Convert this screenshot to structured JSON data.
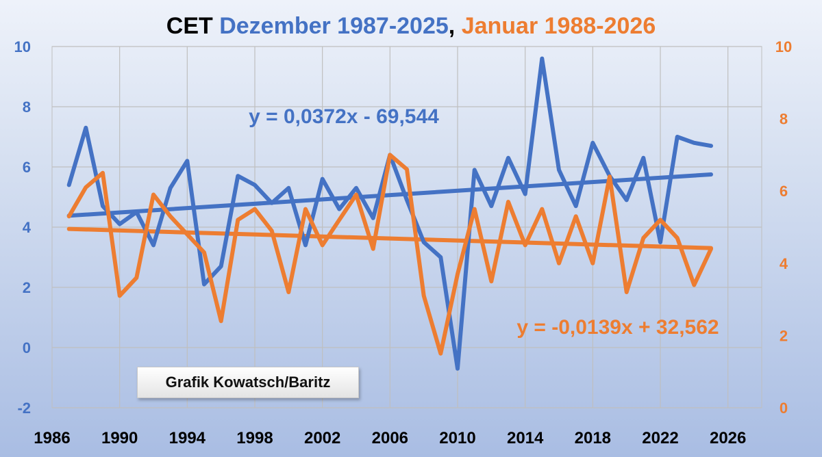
{
  "title": {
    "part1": "CET",
    "part2": "Dezember 1987-2025",
    "part3": ", ",
    "part4": "Januar 1988-2026"
  },
  "credit": "Grafik Kowatsch/Baritz",
  "colors": {
    "december": "#4472C4",
    "january": "#ED7D31",
    "title_text": "#000000",
    "grid": "#bfbfbf"
  },
  "chart_data": {
    "type": "line",
    "x": [
      1987,
      1988,
      1989,
      1990,
      1991,
      1992,
      1993,
      1994,
      1995,
      1996,
      1997,
      1998,
      1999,
      2000,
      2001,
      2002,
      2003,
      2004,
      2005,
      2006,
      2007,
      2008,
      2009,
      2010,
      2011,
      2012,
      2013,
      2014,
      2015,
      2016,
      2017,
      2018,
      2019,
      2020,
      2021,
      2022,
      2023,
      2024,
      2025
    ],
    "xlim": [
      1986,
      2028
    ],
    "x_ticks": [
      "1986",
      "1990",
      "1994",
      "1998",
      "2002",
      "2006",
      "2010",
      "2014",
      "2018",
      "2022",
      "2026"
    ],
    "grid": true,
    "series": [
      {
        "name": "Dezember 1987-2025",
        "axis": "left",
        "color": "#4472C4",
        "values": [
          5.4,
          7.3,
          4.7,
          4.1,
          4.5,
          3.4,
          5.3,
          6.2,
          2.1,
          2.7,
          5.7,
          5.4,
          4.8,
          5.3,
          3.4,
          5.6,
          4.6,
          5.3,
          4.3,
          6.4,
          4.9,
          3.5,
          3.0,
          -0.7,
          5.9,
          4.7,
          6.3,
          5.1,
          9.6,
          5.9,
          4.7,
          6.8,
          5.7,
          4.9,
          6.3,
          3.5,
          7.0,
          6.8,
          6.7
        ],
        "trend": {
          "equation": "y = 0,0372x - 69,544",
          "start": 4.38,
          "end": 5.75
        }
      },
      {
        "name": "Januar 1988-2026",
        "axis": "right",
        "color": "#ED7D31",
        "values": [
          5.3,
          6.1,
          6.5,
          3.1,
          3.6,
          5.9,
          5.3,
          4.8,
          4.3,
          2.4,
          5.2,
          5.5,
          4.9,
          3.2,
          5.5,
          4.5,
          5.2,
          5.9,
          4.4,
          7.0,
          6.6,
          3.1,
          1.5,
          3.7,
          5.5,
          3.5,
          5.7,
          4.5,
          5.5,
          4.0,
          5.3,
          4.0,
          6.4,
          3.2,
          4.7,
          5.2,
          4.7,
          3.4,
          4.4
        ],
        "trend": {
          "equation": "y = -0,0139x + 32,562",
          "start": 4.95,
          "end": 4.42
        }
      }
    ],
    "y_left": {
      "ylim": [
        -2,
        10
      ],
      "ticks": [
        "-2",
        "0",
        "2",
        "4",
        "6",
        "8",
        "10"
      ],
      "color": "#4472C4"
    },
    "y_right": {
      "ylim": [
        0,
        10
      ],
      "ticks": [
        "0",
        "2",
        "4",
        "6",
        "8",
        "10"
      ],
      "color": "#ED7D31"
    }
  }
}
